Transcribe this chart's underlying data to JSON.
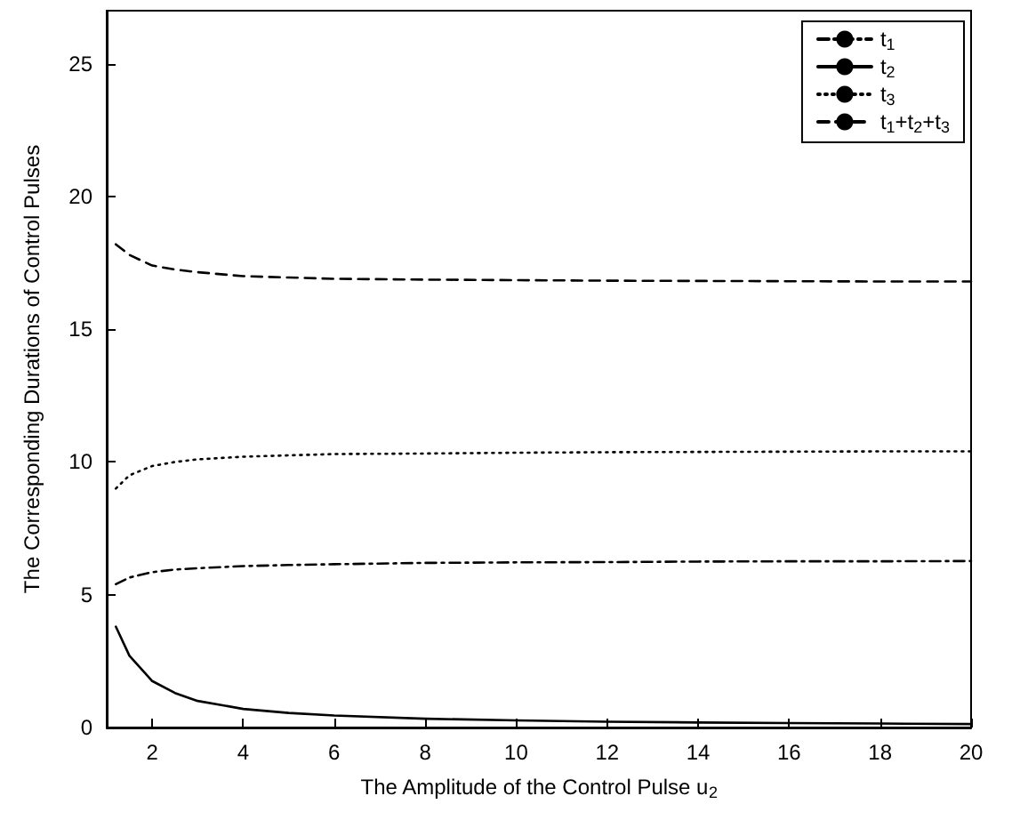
{
  "chart_data": {
    "type": "line",
    "xlabel": "The Amplitude of the Control Pulse u$_{2}$",
    "ylabel": "The Corresponding Durations of Control Pulses",
    "x": [
      1.2,
      1.5,
      2,
      2.5,
      3,
      4,
      5,
      6,
      8,
      10,
      12,
      14,
      16,
      18,
      20
    ],
    "series": [
      {
        "name": "t$_{1}$",
        "color": "#000000",
        "line_style": "dashdot",
        "values": [
          5.4,
          5.65,
          5.85,
          5.95,
          6.0,
          6.08,
          6.12,
          6.15,
          6.2,
          6.22,
          6.23,
          6.25,
          6.26,
          6.26,
          6.27
        ]
      },
      {
        "name": "t$_{2}$",
        "color": "#000000",
        "line_style": "solid",
        "values": [
          3.8,
          2.7,
          1.75,
          1.3,
          1.0,
          0.7,
          0.55,
          0.45,
          0.33,
          0.27,
          0.22,
          0.19,
          0.17,
          0.15,
          0.13
        ]
      },
      {
        "name": "t$_{3}$",
        "color": "#000000",
        "line_style": "dotted",
        "values": [
          9.0,
          9.5,
          9.85,
          10.0,
          10.1,
          10.2,
          10.25,
          10.3,
          10.32,
          10.35,
          10.37,
          10.38,
          10.39,
          10.4,
          10.4
        ]
      },
      {
        "name": "t$_{1}$+t$_{2}$+t$_{3}$",
        "color": "#000000",
        "line_style": "dashed",
        "values": [
          18.2,
          17.8,
          17.4,
          17.25,
          17.15,
          17.0,
          16.95,
          16.9,
          16.87,
          16.85,
          16.83,
          16.82,
          16.81,
          16.8,
          16.8
        ]
      }
    ],
    "xlim": [
      1,
      20
    ],
    "xticks": [
      2,
      4,
      6,
      8,
      10,
      12,
      14,
      16,
      18,
      20
    ],
    "ylim": [
      0,
      27
    ],
    "yticks": [
      0,
      5,
      10,
      15,
      20,
      25
    ],
    "grid": false,
    "legend": "top right",
    "marker": "none"
  }
}
